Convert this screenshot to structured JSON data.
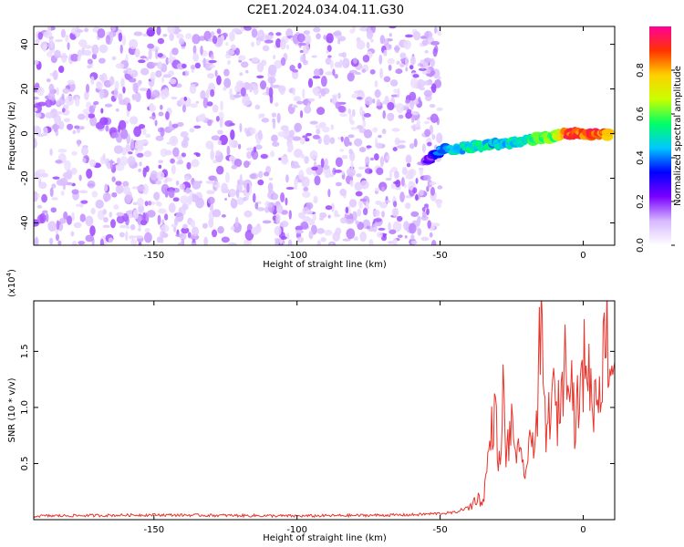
{
  "title": "C2E1.2024.034.04.11.G30",
  "chart_data": [
    {
      "type": "heatmap",
      "xlabel": "Height of straight line (km)",
      "ylabel": "Frequency (Hz)",
      "xlim": [
        -192,
        11
      ],
      "ylim": [
        -50,
        48
      ],
      "x_ticks": [
        -150,
        -100,
        -50,
        0
      ],
      "y_ticks": [
        -40,
        -20,
        0,
        20,
        40
      ],
      "colorbar": {
        "label": "Normalized spectral amplitude",
        "range": [
          0.0,
          1.0
        ],
        "ticks": [
          0.0,
          0.2,
          0.4,
          0.6,
          0.8
        ],
        "colors": [
          "#ffffff",
          "#d6b8ff",
          "#7a00ff",
          "#0000ff",
          "#00c8ff",
          "#00ff66",
          "#c8ff00",
          "#ffd000",
          "#ff3300",
          "#ff0099"
        ]
      },
      "signal_track": {
        "description_free": true,
        "points": [
          {
            "x": -55,
            "y": -12,
            "amp": 0.2
          },
          {
            "x": -50,
            "y": -8,
            "amp": 0.35
          },
          {
            "x": -45,
            "y": -7,
            "amp": 0.45
          },
          {
            "x": -40,
            "y": -6,
            "amp": 0.5
          },
          {
            "x": -35,
            "y": -5,
            "amp": 0.5
          },
          {
            "x": -30,
            "y": -5,
            "amp": 0.45
          },
          {
            "x": -25,
            "y": -4,
            "amp": 0.5
          },
          {
            "x": -20,
            "y": -3,
            "amp": 0.5
          },
          {
            "x": -15,
            "y": -2,
            "amp": 0.55
          },
          {
            "x": -10,
            "y": -1,
            "amp": 0.6
          },
          {
            "x": -5,
            "y": 0,
            "amp": 0.9
          },
          {
            "x": 0,
            "y": 0,
            "amp": 0.85
          },
          {
            "x": 5,
            "y": 0,
            "amp": 0.9
          },
          {
            "x": 9,
            "y": -1,
            "amp": 0.8
          }
        ]
      },
      "background_noise": {
        "x_range": [
          -192,
          -50
        ],
        "amp_range": [
          0.0,
          0.25
        ]
      }
    },
    {
      "type": "line",
      "xlabel": "Height of straight line (km)",
      "ylabel": "SNR (10 * v/v)",
      "y_multiplier": "(x10^4)",
      "y_multiplier_base": "(x10",
      "y_multiplier_exp": "4",
      "y_multiplier_close": ")",
      "xlim": [
        -192,
        11
      ],
      "ylim": [
        0,
        1.95
      ],
      "x_ticks": [
        -150,
        -100,
        -50,
        0
      ],
      "y_ticks": [
        0.5,
        1.0,
        1.5
      ],
      "y_tick_labels": [
        "0.5",
        "1.0",
        "1.5"
      ],
      "color": "#e8342c",
      "series": [
        {
          "x": [
            -192,
            -150,
            -100,
            -60,
            -45,
            -40,
            -37,
            -35,
            -33,
            -31,
            -29,
            -28,
            -27,
            -25,
            -22,
            -20,
            -18,
            -16,
            -15,
            -13,
            -11,
            -9,
            -7,
            -5,
            -3,
            -1,
            1,
            3,
            5,
            7,
            8,
            9,
            10,
            11
          ],
          "values": [
            0.02,
            0.03,
            0.02,
            0.03,
            0.05,
            0.1,
            0.2,
            0.15,
            0.6,
            1.0,
            0.4,
            1.15,
            0.6,
            0.8,
            0.5,
            0.45,
            0.7,
            0.9,
            1.75,
            0.7,
            1.15,
            0.9,
            1.3,
            1.6,
            0.9,
            1.1,
            1.55,
            1.05,
            1.15,
            1.4,
            1.95,
            1.3,
            1.45,
            1.4
          ]
        }
      ]
    }
  ]
}
